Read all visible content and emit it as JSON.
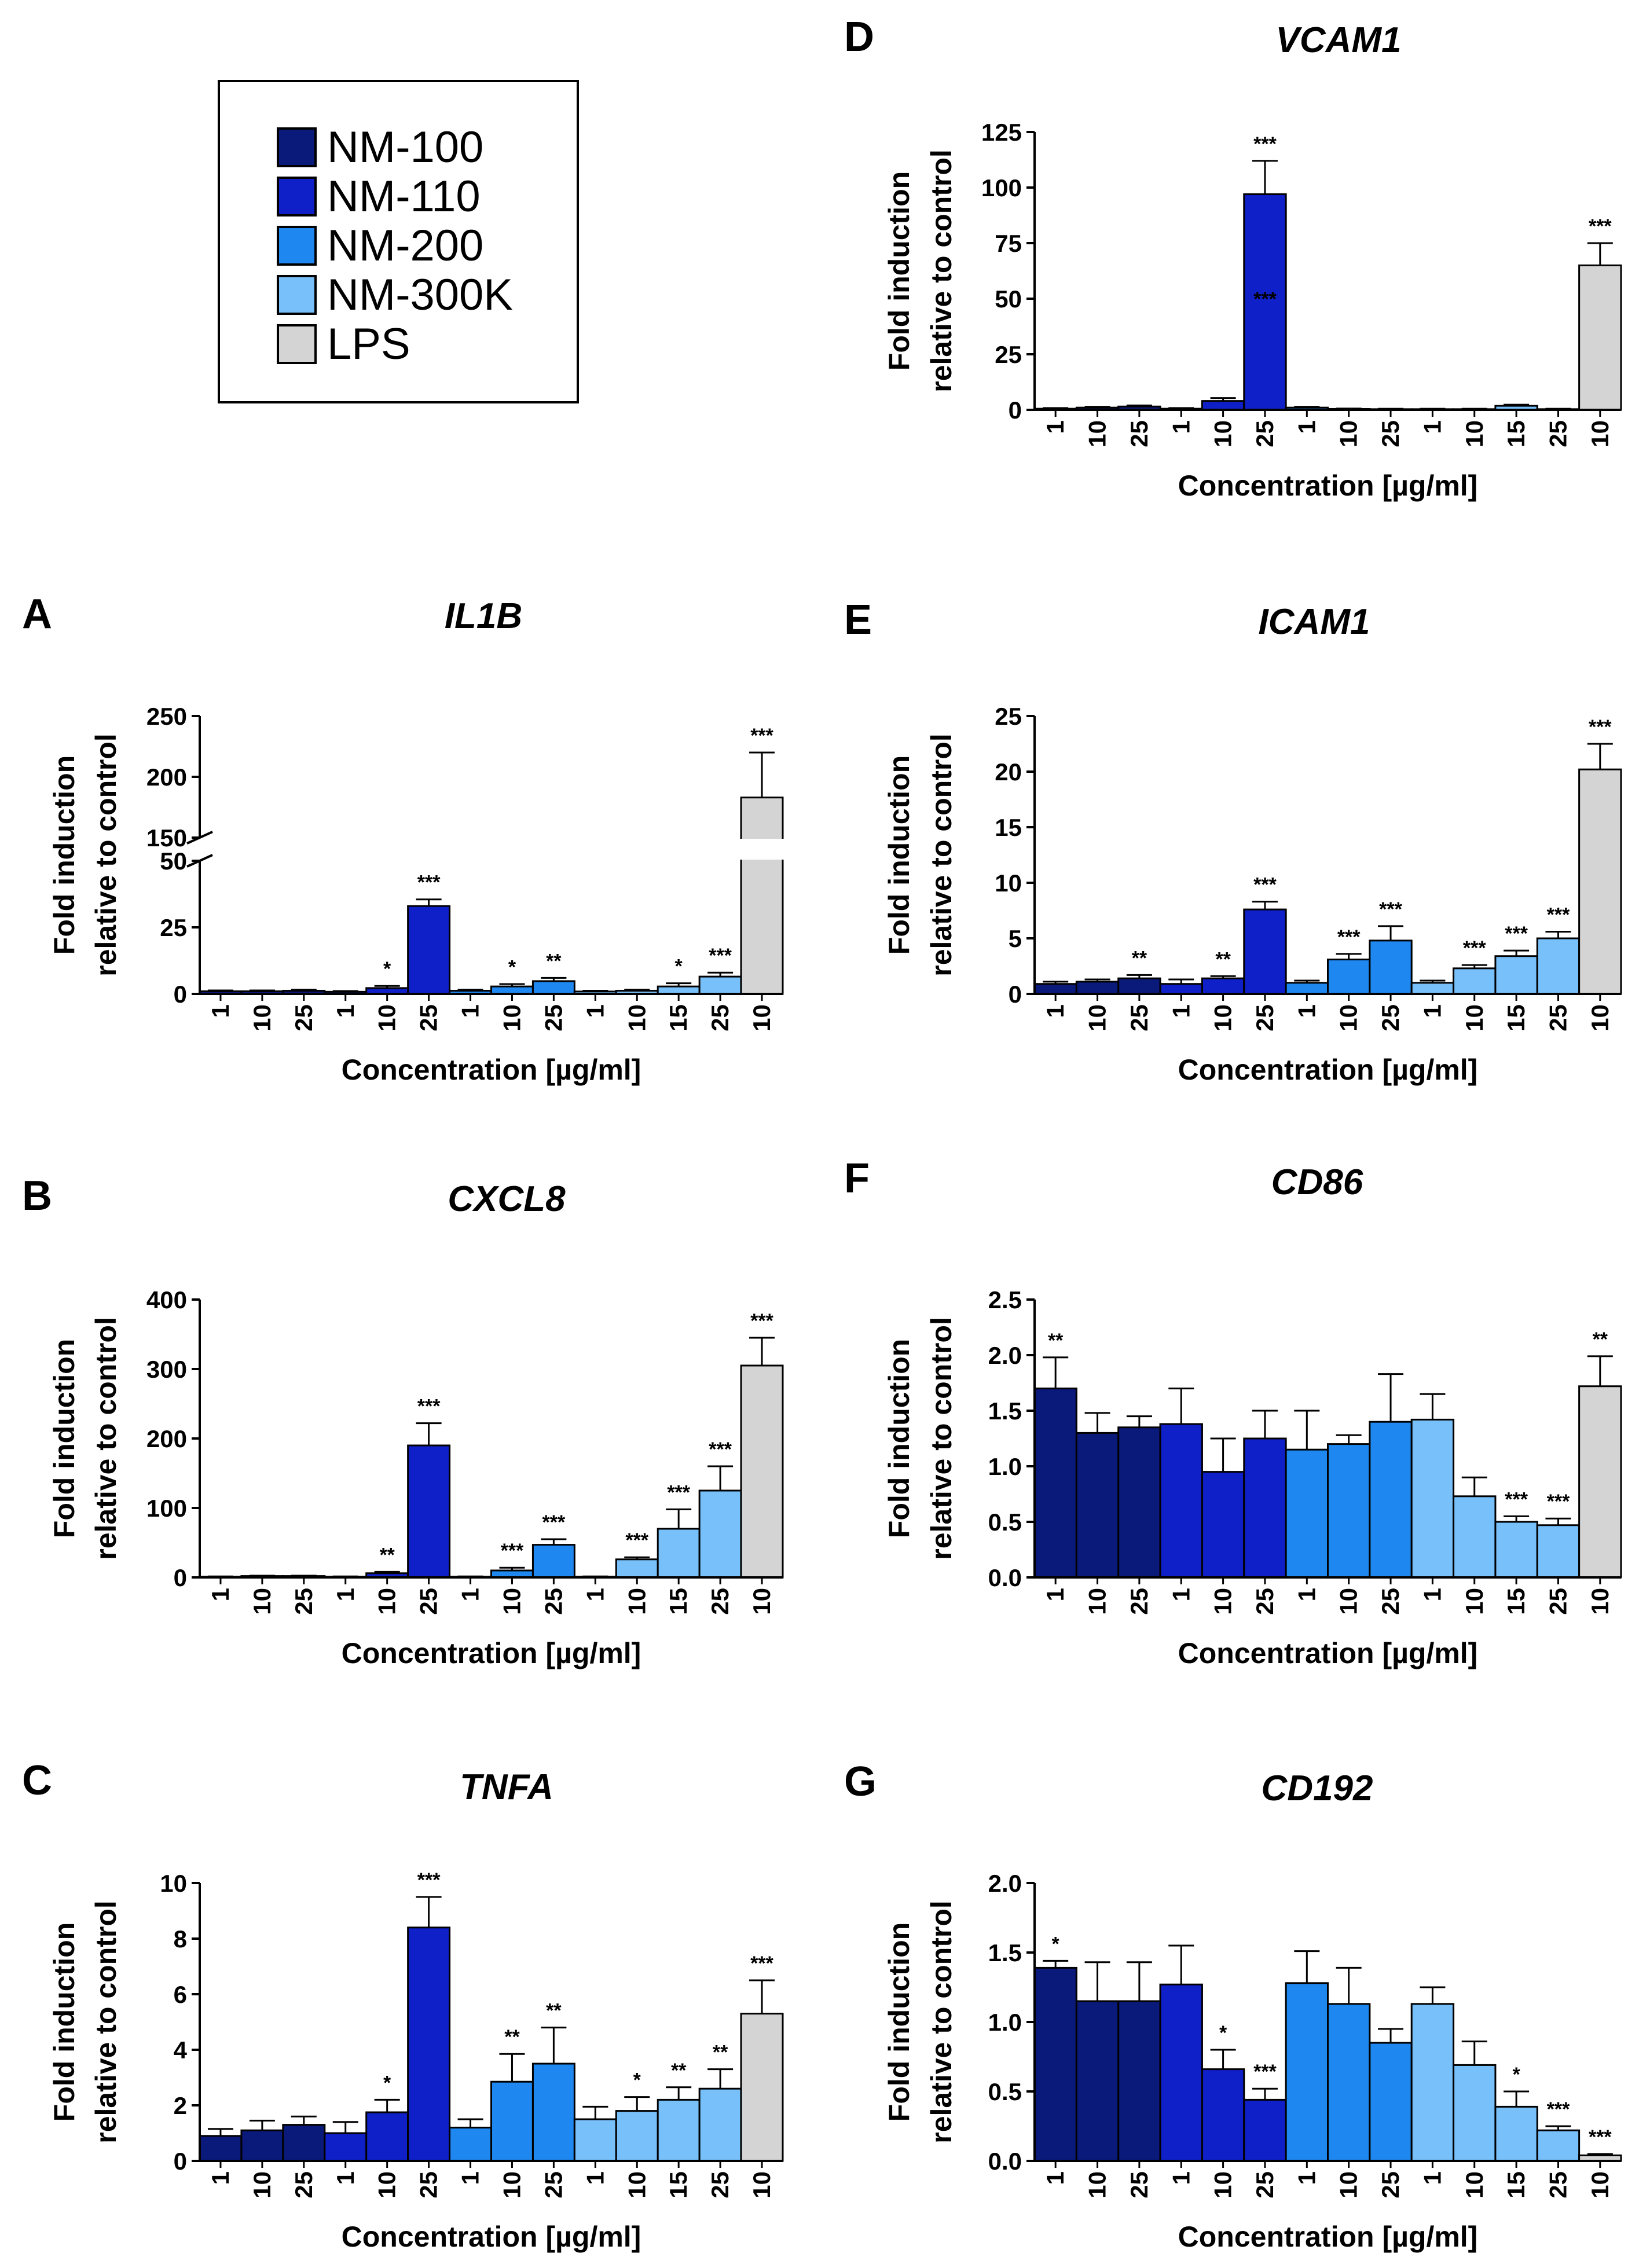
{
  "legend": {
    "items": [
      {
        "label": "NM-100",
        "color": "#0a1a7a"
      },
      {
        "label": "NM-110",
        "color": "#1020c8"
      },
      {
        "label": "NM-200",
        "color": "#1e88f0"
      },
      {
        "label": "NM-300K",
        "color": "#78c0fa"
      },
      {
        "label": "LPS",
        "color": "#d4d4d4"
      }
    ]
  },
  "x_categories": [
    "1",
    "10",
    "25",
    "1",
    "10",
    "25",
    "1",
    "10",
    "25",
    "1",
    "10",
    "15",
    "25",
    "10"
  ],
  "groups": [
    0,
    0,
    0,
    1,
    1,
    1,
    2,
    2,
    2,
    3,
    3,
    3,
    3,
    4
  ],
  "chart_data": [
    {
      "panel": "A",
      "type": "bar",
      "title": "IL1B",
      "ylabel": [
        "Fold induction",
        "relative to control"
      ],
      "xlabel": "Concentration [µg/ml]",
      "broken_axis": true,
      "lower_ylim": [
        0,
        50
      ],
      "lower_ticks": [
        "0",
        "25",
        "50"
      ],
      "upper_ylim": [
        150,
        250
      ],
      "upper_ticks": [
        "150",
        "200",
        "250"
      ],
      "values": [
        1,
        1,
        1.2,
        0.8,
        2.2,
        33,
        1.2,
        2.8,
        4.8,
        0.9,
        1.2,
        2.8,
        6.5,
        183
      ],
      "errors": [
        0.3,
        0.3,
        0.4,
        0.3,
        0.8,
        2.5,
        0.4,
        0.9,
        1.2,
        0.3,
        0.4,
        1.2,
        1.5,
        37
      ],
      "significance": [
        "",
        "",
        "",
        "",
        "*",
        "***",
        "",
        "*",
        "**",
        "",
        "",
        "*",
        "***",
        "***"
      ]
    },
    {
      "panel": "B",
      "type": "bar",
      "title": "CXCL8",
      "ylabel": [
        "Fold induction",
        "relative to control"
      ],
      "xlabel": "Concentration [µg/ml]",
      "ylim": [
        0,
        400
      ],
      "yticks": [
        "0",
        "100",
        "200",
        "300",
        "400"
      ],
      "values": [
        1,
        2,
        2,
        1,
        6,
        190,
        1,
        10,
        47,
        1,
        26,
        70,
        125,
        305
      ],
      "errors": [
        0.5,
        0.5,
        0.5,
        0.5,
        2,
        32,
        0.5,
        4,
        8,
        0.5,
        3,
        28,
        35,
        40
      ],
      "significance": [
        "",
        "",
        "",
        "",
        "**",
        "***",
        "",
        "***",
        "***",
        "",
        "***",
        "***",
        "***",
        "***"
      ]
    },
    {
      "panel": "C",
      "type": "bar",
      "title": "TNFA",
      "ylabel": [
        "Fold induction",
        "relative to control"
      ],
      "xlabel": "Concentration [µg/ml]",
      "ylim": [
        0,
        10
      ],
      "yticks": [
        "0",
        "2",
        "4",
        "6",
        "8",
        "10"
      ],
      "values": [
        0.9,
        1.1,
        1.3,
        1.0,
        1.75,
        8.4,
        1.2,
        2.85,
        3.5,
        1.5,
        1.8,
        2.2,
        2.6,
        5.3
      ],
      "errors": [
        0.25,
        0.35,
        0.3,
        0.4,
        0.45,
        1.1,
        0.3,
        1.0,
        1.3,
        0.45,
        0.5,
        0.45,
        0.7,
        1.2
      ],
      "significance": [
        "",
        "",
        "",
        "",
        "*",
        "***",
        "",
        "**",
        "**",
        "",
        "*",
        "**",
        "**",
        "***"
      ]
    },
    {
      "panel": "D",
      "type": "bar",
      "title": "VCAM1",
      "ylabel": [
        "Fold induction",
        "relative to control"
      ],
      "xlabel": "Concentration [µg/ml]",
      "ylim": [
        0,
        125
      ],
      "yticks": [
        "0",
        "25",
        "50",
        "75",
        "100",
        "125"
      ],
      "values": [
        0.5,
        1,
        1.5,
        0.5,
        4,
        97,
        1,
        0.4,
        0.3,
        0.3,
        0.3,
        1.8,
        0.3,
        65
      ],
      "errors": [
        0.3,
        0.4,
        0.5,
        0.3,
        1.3,
        15,
        0.4,
        0.2,
        0.2,
        0.2,
        0.2,
        0.5,
        0.2,
        10
      ],
      "significance": [
        "",
        "",
        "",
        "",
        "",
        "***",
        "",
        "",
        "",
        "",
        "",
        "",
        "",
        "***"
      ],
      "annotation": {
        "text": "***",
        "bar": 5,
        "value": 50
      }
    },
    {
      "panel": "E",
      "type": "bar",
      "title": "ICAM1",
      "ylabel": [
        "Fold induction",
        "relative to control"
      ],
      "xlabel": "Concentration [µg/ml]",
      "ylim": [
        0,
        25
      ],
      "yticks": [
        "0",
        "5",
        "10",
        "15",
        "20",
        "25"
      ],
      "values": [
        0.9,
        1.1,
        1.4,
        0.9,
        1.4,
        7.6,
        1.0,
        3.1,
        4.8,
        1.0,
        2.3,
        3.4,
        5.0,
        20.2
      ],
      "errors": [
        0.2,
        0.2,
        0.3,
        0.4,
        0.2,
        0.7,
        0.2,
        0.5,
        1.3,
        0.2,
        0.3,
        0.5,
        0.6,
        2.3
      ],
      "significance": [
        "",
        "",
        "**",
        "",
        "**",
        "***",
        "",
        "***",
        "***",
        "",
        "***",
        "***",
        "***",
        "***"
      ]
    },
    {
      "panel": "F",
      "type": "bar",
      "title": "CD86",
      "ylabel": [
        "Fold induction",
        "relative to control"
      ],
      "xlabel": "Concentration [µg/ml]",
      "ylim": [
        0,
        2.5
      ],
      "yticks": [
        "0.0",
        "0.5",
        "1.0",
        "1.5",
        "2.0",
        "2.5"
      ],
      "values": [
        1.7,
        1.3,
        1.35,
        1.38,
        0.95,
        1.25,
        1.15,
        1.2,
        1.4,
        1.42,
        0.73,
        0.5,
        0.47,
        1.72
      ],
      "errors": [
        0.28,
        0.18,
        0.1,
        0.32,
        0.3,
        0.25,
        0.35,
        0.08,
        0.43,
        0.23,
        0.17,
        0.05,
        0.06,
        0.27
      ],
      "significance": [
        "**",
        "",
        "",
        "",
        "",
        "",
        "",
        "",
        "",
        "",
        "",
        "***",
        "***",
        "**"
      ]
    },
    {
      "panel": "G",
      "type": "bar",
      "title": "CD192",
      "ylabel": [
        "Fold induction",
        "relative to control"
      ],
      "xlabel": "Concentration [µg/ml]",
      "ylim": [
        0,
        2.0
      ],
      "yticks": [
        "0.0",
        "0.5",
        "1.0",
        "1.5",
        "2.0"
      ],
      "values": [
        1.39,
        1.15,
        1.15,
        1.27,
        0.66,
        0.44,
        1.28,
        1.13,
        0.85,
        1.13,
        0.69,
        0.39,
        0.22,
        0.04
      ],
      "errors": [
        0.05,
        0.28,
        0.28,
        0.28,
        0.14,
        0.08,
        0.23,
        0.26,
        0.1,
        0.12,
        0.17,
        0.11,
        0.03,
        0.01
      ],
      "significance": [
        "*",
        "",
        "",
        "",
        "*",
        "***",
        "",
        "",
        "",
        "",
        "",
        "*",
        "***",
        "***"
      ]
    }
  ]
}
